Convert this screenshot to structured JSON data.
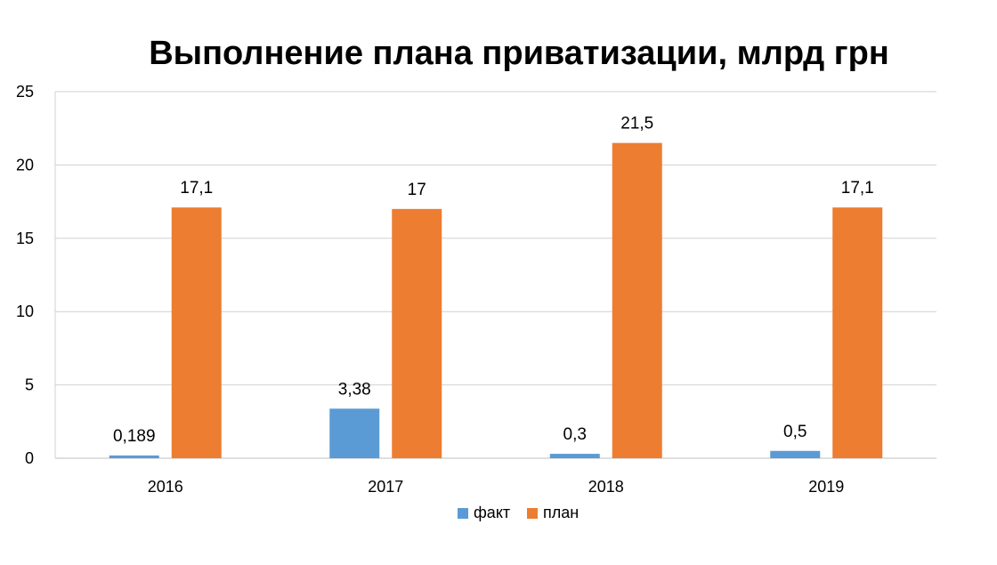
{
  "chart_data": {
    "type": "bar",
    "title": "Выполнение плана приватизации, млрд грн",
    "categories": [
      "2016",
      "2017",
      "2018",
      "2019"
    ],
    "series": [
      {
        "name": "факт",
        "color": "#5b9bd5",
        "values": [
          0.189,
          3.38,
          0.3,
          0.5
        ],
        "labels": [
          "0,189",
          "3,38",
          "0,3",
          "0,5"
        ]
      },
      {
        "name": "план",
        "color": "#ed7d31",
        "values": [
          17.1,
          17,
          21.5,
          17.1
        ],
        "labels": [
          "17,1",
          "17",
          "21,5",
          "17,1"
        ]
      }
    ],
    "ylim": [
      0,
      25
    ],
    "yticks": [
      0,
      5,
      10,
      15,
      20,
      25
    ],
    "grid": true,
    "legend_position": "bottom"
  }
}
